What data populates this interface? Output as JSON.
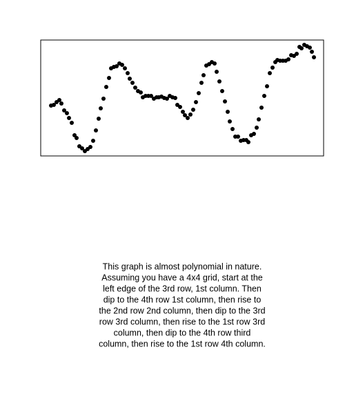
{
  "chart_data": {
    "type": "scatter",
    "color": "#000000",
    "xlim": [
      0,
      410
    ],
    "ylim": [
      0,
      168
    ],
    "x": [
      15,
      19,
      23,
      27,
      30,
      34,
      38,
      41,
      45,
      49,
      52,
      56,
      60,
      64,
      68,
      72,
      76,
      80,
      84,
      87,
      91,
      95,
      99,
      102,
      106,
      110,
      114,
      118,
      122,
      126,
      129,
      133,
      137,
      141,
      145,
      148,
      152,
      156,
      160,
      164,
      168,
      171,
      175,
      179,
      183,
      187,
      191,
      195,
      198,
      202,
      206,
      209,
      213,
      217,
      221,
      225,
      229,
      233,
      236,
      240,
      244,
      248,
      252,
      255,
      259,
      263,
      267,
      271,
      274,
      278,
      282,
      286,
      290,
      294,
      298,
      301,
      305,
      309,
      313,
      316,
      320,
      324,
      328,
      332,
      336,
      340,
      343,
      347,
      351,
      355,
      359,
      363,
      367,
      371,
      375,
      378,
      382,
      386,
      390,
      393,
      396
    ],
    "values": [
      73,
      74,
      78,
      81,
      76,
      66,
      62,
      55,
      48,
      30,
      26,
      14,
      11,
      7,
      10,
      13,
      22,
      37,
      54,
      69,
      83,
      100,
      113,
      127,
      129,
      130,
      134,
      132,
      127,
      120,
      112,
      106,
      99,
      94,
      92,
      85,
      87,
      87,
      87,
      83,
      85,
      85,
      86,
      84,
      83,
      87,
      85,
      84,
      74,
      71,
      64,
      59,
      55,
      60,
      67,
      78,
      91,
      106,
      117,
      131,
      133,
      136,
      134,
      122,
      108,
      94,
      79,
      64,
      50,
      39,
      28,
      28,
      22,
      23,
      23,
      20,
      30,
      32,
      41,
      53,
      70,
      87,
      101,
      120,
      128,
      136,
      139,
      138,
      138,
      138,
      140,
      146,
      145,
      148,
      158,
      156,
      161,
      159,
      157,
      151,
      143
    ]
  },
  "caption": [
    "This graph is almost polynomial in nature.",
    "Assuming you have a 4x4 grid, start at the",
    "left edge of the 3rd row, 1st column. Then",
    "dip to the 4th row 1st column, then rise to",
    "the 2nd row 2nd column, then dip to the 3rd",
    "row 3rd column, then rise to the 1st row 3rd",
    "column, then dip to the 4th row third",
    "column, then rise to the 1st row 4th column."
  ]
}
